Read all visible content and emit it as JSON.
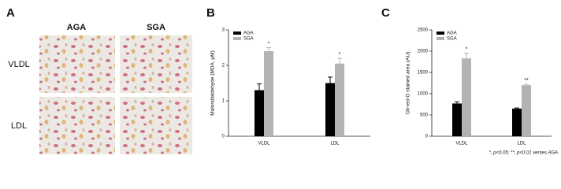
{
  "panel_a": {
    "label": "A",
    "columns": [
      "AGA",
      "SGA"
    ],
    "rows": [
      "VLDL",
      "LDL"
    ]
  },
  "chart_data": [
    {
      "type": "bar",
      "panel": "B",
      "ylabel": "Malondialdehyde (MDA, μM)",
      "categories": [
        "VLDL",
        "LDL"
      ],
      "series": [
        {
          "name": "AGA",
          "color": "#000000",
          "values": [
            1.3,
            1.5
          ],
          "errors": [
            0.18,
            0.17
          ]
        },
        {
          "name": "SGA",
          "color": "#b3b3b3",
          "values": [
            2.4,
            2.05
          ],
          "errors": [
            0.1,
            0.15
          ],
          "annotations": [
            "*",
            "*"
          ]
        }
      ],
      "ylim": [
        0,
        3
      ],
      "yticks": [
        0,
        1,
        2,
        3
      ],
      "legend": "upper left"
    },
    {
      "type": "bar",
      "panel": "C",
      "ylabel": "Oil-red-O stained area (AU)",
      "categories": [
        "VLDL",
        "LDL"
      ],
      "series": [
        {
          "name": "AGA",
          "color": "#000000",
          "values": [
            770,
            650
          ],
          "errors": [
            40,
            15
          ]
        },
        {
          "name": "SGA",
          "color": "#b3b3b3",
          "values": [
            1830,
            1200
          ],
          "errors": [
            120,
            20
          ],
          "annotations": [
            "*",
            "**"
          ]
        }
      ],
      "ylim": [
        0,
        2500
      ],
      "yticks": [
        0,
        500,
        1000,
        1500,
        2000,
        2500
      ],
      "legend": "upper left",
      "note": "*, p<0.05; **, p<0.01 verses AGA"
    }
  ]
}
